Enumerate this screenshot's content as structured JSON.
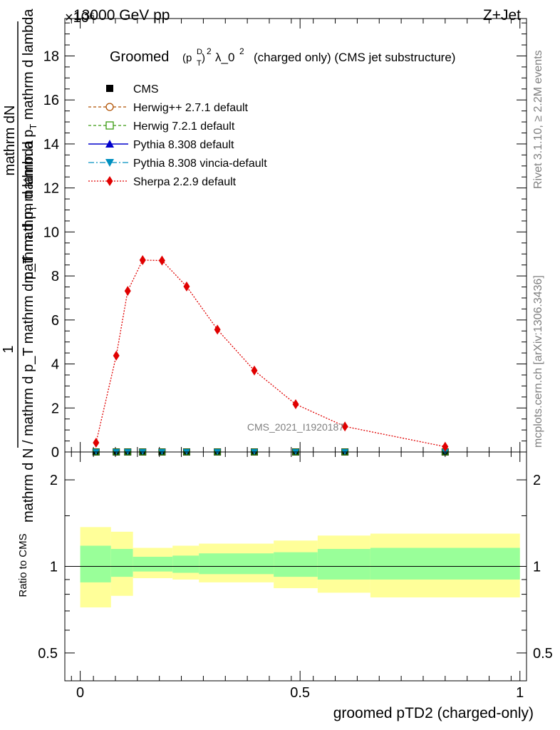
{
  "header": {
    "left_label": "13000 GeV pp",
    "right_label": "Z+Jet",
    "exponent_label": "×10⁶"
  },
  "side_text": {
    "rivet": "Rivet 3.1.10, ≥ 2.2M events",
    "mcplots": "mcplots.cern.ch [arXiv:1306.3436]"
  },
  "chart_data": {
    "type": "line",
    "title": "Groomed (pTD)² λ_0²  (charged only) (CMS jet substructure)",
    "title_parts": {
      "prefix": "Groomed",
      "var": "(p",
      "var_sub": "T",
      "var_sup": "D",
      "var_close": ")",
      "pow": "2",
      "lambda": "λ_0",
      "lambda_pow": "2",
      "suffix": "(charged only) (CMS jet substructure)"
    },
    "analysis_label": "CMS_2021_I1920187",
    "ylabel_top": "mathrm dN",
    "ylabel_bottom": "mathrm d N / mathrm d p_T mathrm d p_T mathrm d lambda",
    "ylabel_one": "1",
    "xlabel": "groomed pTD2 (charged-only)",
    "ratio_ylabel": "Ratio to CMS",
    "xlim": [
      -0.035,
      1.015
    ],
    "ylim": [
      0,
      19.7
    ],
    "y_scale_factor": "1e6",
    "main_yticks": [
      0,
      2,
      4,
      6,
      8,
      10,
      12,
      14,
      16,
      18
    ],
    "xticks": [
      0,
      0.5,
      1
    ],
    "xtick_labels": [
      "0",
      "0.5",
      "1"
    ],
    "ratio_yticks": [
      0.5,
      1,
      2
    ],
    "ratio_ytick_labels": [
      "0.5",
      "1",
      "2"
    ],
    "ratio_ylim": [
      0.4,
      2.5
    ],
    "legend": [
      {
        "name": "CMS",
        "color": "#000000",
        "marker": "square-filled",
        "dash": "none"
      },
      {
        "name": "Herwig++ 2.7.1 default",
        "color": "#b05000",
        "marker": "circle-open",
        "dash": "4,3"
      },
      {
        "name": "Herwig 7.2.1 default",
        "color": "#3a9a10",
        "marker": "square-open",
        "dash": "4,3"
      },
      {
        "name": "Pythia 8.308 default",
        "color": "#0000cc",
        "marker": "triangle-filled",
        "dash": "none"
      },
      {
        "name": "Pythia 8.308 vincia-default",
        "color": "#0090c0",
        "marker": "triangledown-filled",
        "dash": "8,3,2,3"
      },
      {
        "name": "Sherpa 2.2.9 default",
        "color": "#e00000",
        "marker": "diamond-filled",
        "dash": "2,2"
      }
    ],
    "flat_series_points": [
      0.036,
      0.082,
      0.108,
      0.142,
      0.186,
      0.242,
      0.312,
      0.396,
      0.49,
      0.602,
      0.83
    ],
    "flat_series_value": 0,
    "sherpa": {
      "x": [
        0.036,
        0.082,
        0.108,
        0.142,
        0.186,
        0.242,
        0.312,
        0.396,
        0.49,
        0.602,
        0.83
      ],
      "y": [
        0.42,
        4.38,
        7.32,
        8.72,
        8.7,
        7.52,
        5.56,
        3.7,
        2.17,
        1.16,
        0.24
      ]
    },
    "ratio_bands": [
      {
        "x0": 0.0,
        "x1": 0.07,
        "inner": [
          0.88,
          1.18
        ],
        "outer": [
          0.72,
          1.37
        ]
      },
      {
        "x0": 0.07,
        "x1": 0.12,
        "inner": [
          0.92,
          1.15
        ],
        "outer": [
          0.79,
          1.32
        ]
      },
      {
        "x0": 0.12,
        "x1": 0.21,
        "inner": [
          0.96,
          1.08
        ],
        "outer": [
          0.91,
          1.16
        ]
      },
      {
        "x0": 0.21,
        "x1": 0.27,
        "inner": [
          0.95,
          1.09
        ],
        "outer": [
          0.9,
          1.18
        ]
      },
      {
        "x0": 0.27,
        "x1": 0.44,
        "inner": [
          0.94,
          1.11
        ],
        "outer": [
          0.88,
          1.2
        ]
      },
      {
        "x0": 0.44,
        "x1": 0.54,
        "inner": [
          0.92,
          1.12
        ],
        "outer": [
          0.84,
          1.23
        ]
      },
      {
        "x0": 0.54,
        "x1": 0.66,
        "inner": [
          0.9,
          1.15
        ],
        "outer": [
          0.81,
          1.28
        ]
      },
      {
        "x0": 0.66,
        "x1": 1.0,
        "inner": [
          0.9,
          1.16
        ],
        "outer": [
          0.78,
          1.3
        ]
      }
    ],
    "colors": {
      "inner_band": "#99ff99",
      "outer_band": "#ffff99"
    }
  }
}
